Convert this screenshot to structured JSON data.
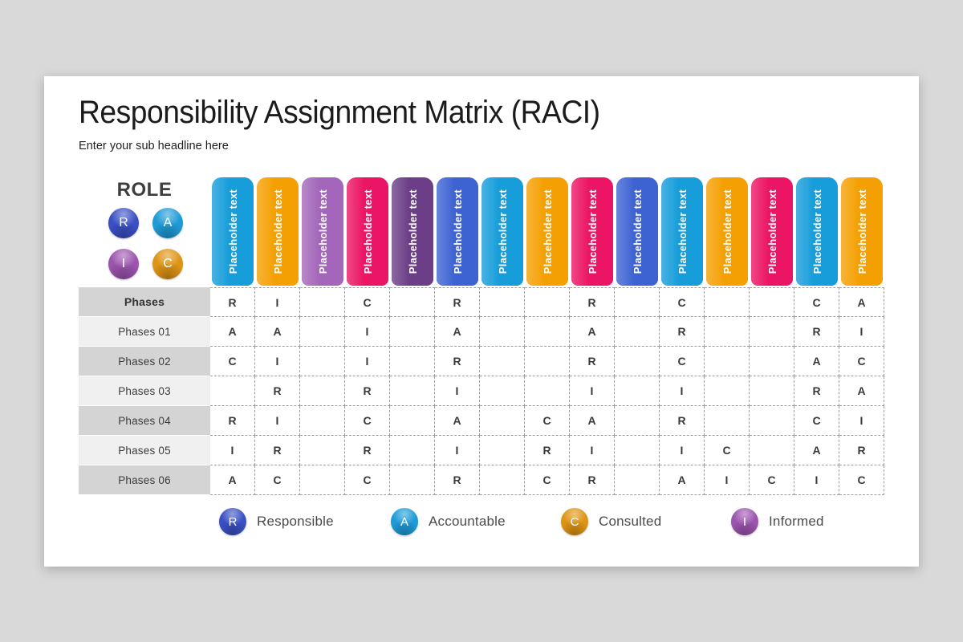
{
  "title": "Responsibility Assignment Matrix (RACI)",
  "subtitle": "Enter your sub headline here",
  "role_panel": {
    "heading": "ROLE",
    "badges": [
      {
        "letter": "R",
        "color": "#3a50c4"
      },
      {
        "letter": "A",
        "color": "#1e9bd7"
      },
      {
        "letter": "I",
        "color": "#9c54ae"
      },
      {
        "letter": "C",
        "color": "#de9414"
      }
    ]
  },
  "palette": {
    "lightblue": "#169dda",
    "orange": "#f5a002",
    "lavender": "#a466ba",
    "pink": "#ec1464",
    "darkpurple": "#6c3e87",
    "royalblue": "#3d63d3"
  },
  "columns": [
    {
      "label": "Placeholder text",
      "color": "#169dda"
    },
    {
      "label": "Placeholder text",
      "color": "#f5a002"
    },
    {
      "label": "Placeholder text",
      "color": "#a466ba"
    },
    {
      "label": "Placeholder text",
      "color": "#ec1464"
    },
    {
      "label": "Placeholder text",
      "color": "#6c3e87"
    },
    {
      "label": "Placeholder text",
      "color": "#3d63d3"
    },
    {
      "label": "Placeholder text",
      "color": "#169dda"
    },
    {
      "label": "Placeholder text",
      "color": "#f5a002"
    },
    {
      "label": "Placeholder text",
      "color": "#ec1464"
    },
    {
      "label": "Placeholder text",
      "color": "#3d63d3"
    },
    {
      "label": "Placeholder text",
      "color": "#169dda"
    },
    {
      "label": "Placeholder text",
      "color": "#f5a002"
    },
    {
      "label": "Placeholder text",
      "color": "#ec1464"
    },
    {
      "label": "Placeholder text",
      "color": "#169dda"
    },
    {
      "label": "Placeholder text",
      "color": "#f5a002"
    }
  ],
  "rows": [
    {
      "label": "Phases",
      "cells": [
        "R",
        "I",
        "",
        "C",
        "",
        "R",
        "",
        "",
        "R",
        "",
        "C",
        "",
        "",
        "C",
        "A"
      ]
    },
    {
      "label": "Phases 01",
      "cells": [
        "A",
        "A",
        "",
        "I",
        "",
        "A",
        "",
        "",
        "A",
        "",
        "R",
        "",
        "",
        "R",
        "I"
      ]
    },
    {
      "label": "Phases 02",
      "cells": [
        "C",
        "I",
        "",
        "I",
        "",
        "R",
        "",
        "",
        "R",
        "",
        "C",
        "",
        "",
        "A",
        "C"
      ]
    },
    {
      "label": "Phases 03",
      "cells": [
        "",
        "R",
        "",
        "R",
        "",
        "I",
        "",
        "",
        "I",
        "",
        "I",
        "",
        "",
        "R",
        "A"
      ]
    },
    {
      "label": "Phases 04",
      "cells": [
        "R",
        "I",
        "",
        "C",
        "",
        "A",
        "",
        "C",
        "A",
        "",
        "R",
        "",
        "",
        "C",
        "I"
      ]
    },
    {
      "label": "Phases 05",
      "cells": [
        "I",
        "R",
        "",
        "R",
        "",
        "I",
        "",
        "R",
        "I",
        "",
        "I",
        "C",
        "",
        "A",
        "R"
      ]
    },
    {
      "label": "Phases 06",
      "cells": [
        "A",
        "C",
        "",
        "C",
        "",
        "R",
        "",
        "C",
        "R",
        "",
        "A",
        "I",
        "C",
        "I",
        "C"
      ]
    }
  ],
  "legend": [
    {
      "letter": "R",
      "label": "Responsible",
      "color": "#3a50c4"
    },
    {
      "letter": "A",
      "label": "Accountable",
      "color": "#1e9bd7"
    },
    {
      "letter": "C",
      "label": "Consulted",
      "color": "#de9414"
    },
    {
      "letter": "I",
      "label": "Informed",
      "color": "#9c54ae"
    }
  ]
}
